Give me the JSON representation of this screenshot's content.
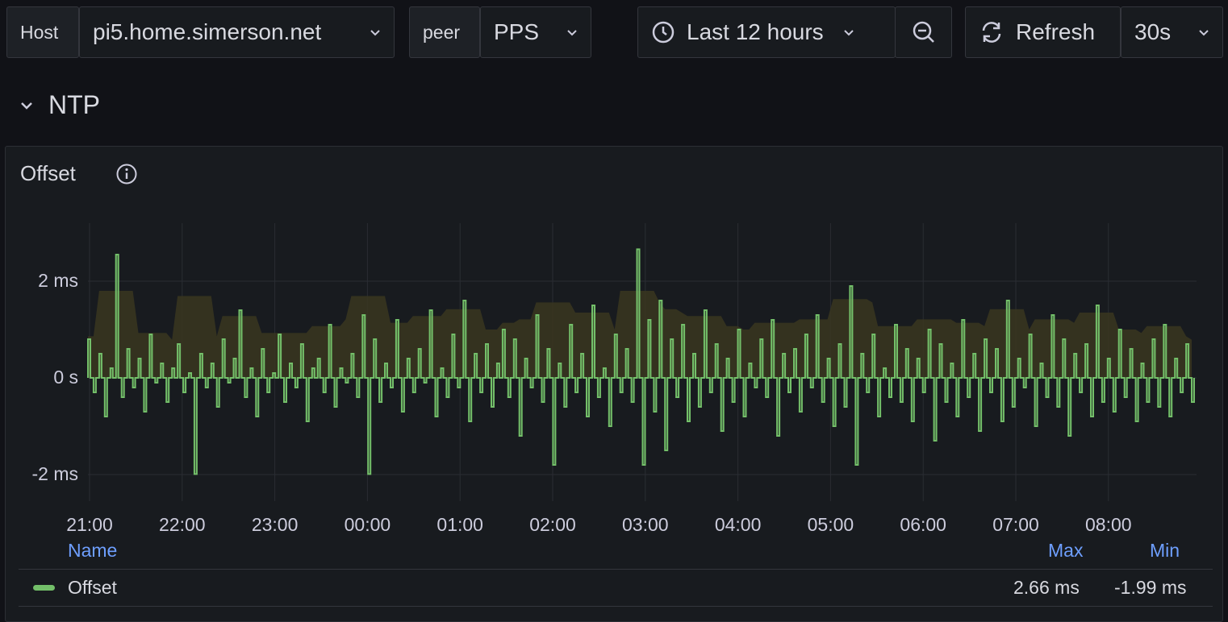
{
  "toolbar": {
    "host_label": "Host",
    "host_value": "pi5.home.simerson.net",
    "peer_label": "peer",
    "peer_value": "PPS",
    "time_range": "Last 12 hours",
    "refresh_label": "Refresh",
    "refresh_interval": "30s"
  },
  "section": {
    "title": "NTP"
  },
  "panel": {
    "title": "Offset",
    "legend": {
      "col_name": "Name",
      "col_max": "Max",
      "col_min": "Min",
      "series_name": "Offset",
      "max": "2.66 ms",
      "min": "-1.99 ms"
    }
  },
  "colors": {
    "series": "#73bf69",
    "band": "#3a3620",
    "accent_text": "#6e9fff"
  },
  "chart_data": {
    "type": "line",
    "title": "Offset",
    "x_tick_labels": [
      "21:00",
      "22:00",
      "23:00",
      "00:00",
      "01:00",
      "02:00",
      "03:00",
      "04:00",
      "05:00",
      "06:00",
      "07:00",
      "08:00"
    ],
    "y_tick_labels": [
      "2 ms",
      "0 s",
      "-2 ms"
    ],
    "ylim": [
      -2.5,
      3.2
    ],
    "unit": "ms",
    "series": [
      {
        "name": "Offset",
        "max": 2.66,
        "min": -1.99,
        "x_start": "20:55",
        "x_end": "08:55",
        "values": [
          0.8,
          -0.3,
          0.5,
          -0.8,
          0.2,
          2.55,
          -0.4,
          0.6,
          -0.2,
          0.4,
          -0.7,
          0.9,
          -0.1,
          0.3,
          -0.5,
          0.2,
          0.7,
          -0.3,
          0.1,
          -1.99,
          0.5,
          -0.2,
          0.3,
          -0.6,
          0.8,
          -0.1,
          0.4,
          1.4,
          -0.4,
          0.2,
          -0.8,
          0.6,
          -0.3,
          0.1,
          0.9,
          -0.5,
          0.3,
          -0.2,
          0.7,
          -0.9,
          0.2,
          0.4,
          -0.3,
          1.1,
          -0.6,
          0.2,
          -0.1,
          0.5,
          -0.4,
          1.3,
          -1.99,
          0.8,
          -0.5,
          0.3,
          -0.2,
          1.2,
          -0.7,
          0.4,
          -0.3,
          0.6,
          -0.1,
          1.4,
          -0.8,
          0.2,
          -0.4,
          0.9,
          -0.2,
          1.6,
          -0.9,
          0.5,
          -0.3,
          0.7,
          -0.6,
          0.3,
          1.0,
          -0.4,
          0.8,
          -1.2,
          0.4,
          -0.2,
          1.3,
          -0.5,
          0.6,
          -1.8,
          0.3,
          -0.6,
          1.1,
          -0.3,
          0.5,
          -0.8,
          1.5,
          -0.4,
          0.2,
          -1.0,
          0.9,
          -0.3,
          0.6,
          -0.5,
          2.66,
          -1.8,
          1.2,
          -0.7,
          1.6,
          -1.5,
          0.8,
          -0.4,
          1.1,
          -0.9,
          0.5,
          -0.6,
          1.4,
          -0.3,
          0.7,
          -1.1,
          0.4,
          -0.5,
          1.0,
          -0.8,
          0.3,
          -0.2,
          0.8,
          -0.4,
          1.2,
          -1.2,
          0.5,
          -0.3,
          0.6,
          -0.7,
          0.9,
          -0.2,
          1.3,
          -0.5,
          0.4,
          -1.0,
          0.7,
          -0.6,
          1.9,
          -1.8,
          0.5,
          -0.3,
          0.9,
          -0.8,
          0.2,
          -0.4,
          1.1,
          -0.5,
          0.6,
          -0.9,
          0.4,
          -0.3,
          1.0,
          -1.3,
          0.7,
          -0.5,
          0.3,
          -0.8,
          1.2,
          -0.4,
          0.5,
          -1.1,
          0.8,
          -0.3,
          0.6,
          -0.9,
          1.6,
          -0.6,
          0.4,
          -0.2,
          0.9,
          -1.0,
          0.3,
          -0.4,
          1.3,
          -0.6,
          0.8,
          -1.2,
          0.5,
          -0.3,
          0.7,
          -0.8,
          1.5,
          -0.5,
          0.4,
          -0.7,
          1.0,
          -0.4,
          0.6,
          -0.9,
          0.3,
          -0.5,
          0.8,
          -0.6,
          1.1,
          -0.8,
          0.4,
          -0.3,
          0.7,
          -0.5
        ]
      }
    ]
  }
}
